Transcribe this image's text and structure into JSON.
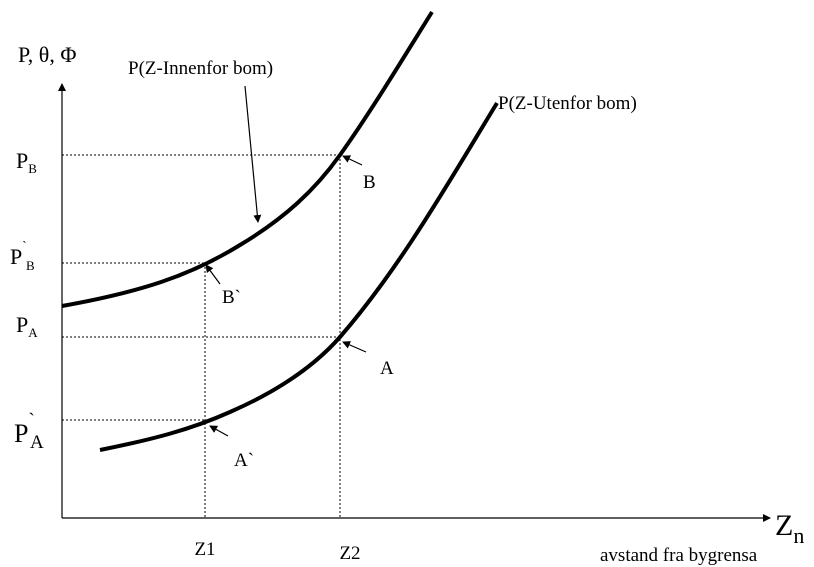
{
  "axes": {
    "y_label": "P, θ, Φ",
    "x_label": {
      "text": "Z",
      "sub": "n"
    },
    "x_caption": "avstand fra bygrensa"
  },
  "curves": [
    {
      "label": "P(Z-Innenfor bom)"
    },
    {
      "label": "P(Z-Utenfor bom)"
    }
  ],
  "points": [
    {
      "label": "B"
    },
    {
      "label": "B`"
    },
    {
      "label": "A"
    },
    {
      "label": "A`"
    }
  ],
  "y_labels": [
    {
      "text": "P",
      "sub": "B"
    },
    {
      "text": "P",
      "sup": "`",
      "sub": "B"
    },
    {
      "text": "P",
      "sub": "A"
    },
    {
      "text": "P",
      "sup": "`",
      "sub": "A"
    }
  ],
  "x_labels": [
    "Z1",
    "Z2"
  ]
}
